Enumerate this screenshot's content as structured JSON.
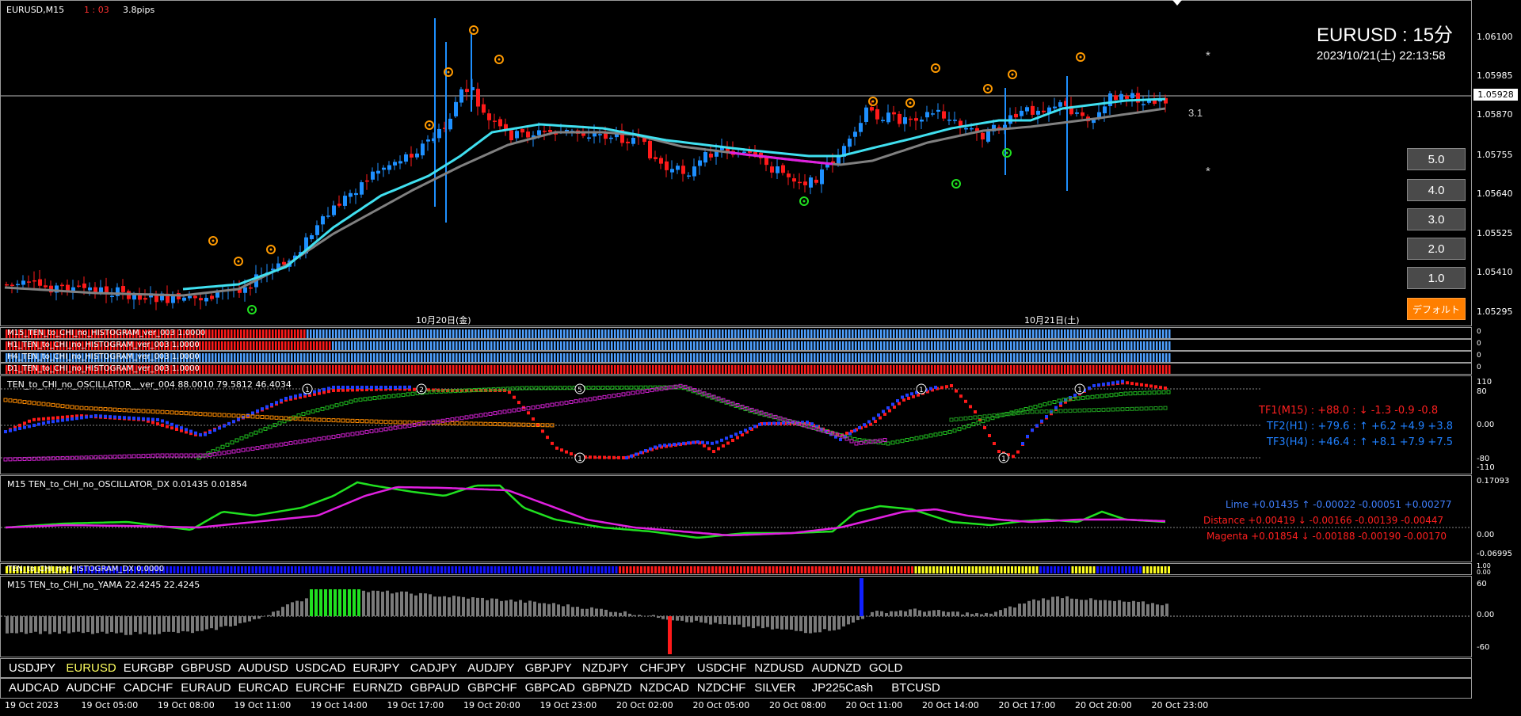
{
  "main": {
    "symbol_title": "EURUSD,M15",
    "timer": "1 : 03",
    "spread": "3.8pips",
    "big_title": "EURUSD : 15分",
    "datetime": "2023/10/21(土) 22:13:58",
    "current_price": "1.05928",
    "level_label": "3.1",
    "star": "*",
    "date_marks": [
      "10月20日(金)",
      "10月21日(土)"
    ],
    "y_labels": [
      "1.06100",
      "1.05985",
      "1.05870",
      "1.05755",
      "1.05640",
      "1.05525",
      "1.05410",
      "1.05295"
    ],
    "buttons": [
      "5.0",
      "4.0",
      "3.0",
      "2.0",
      "1.0"
    ],
    "default_button": "デフォルト"
  },
  "histograms": [
    {
      "label": "M15_TEN_to_CHI_no_HISTOGRAM_ver_003 1.0000",
      "scale": "0"
    },
    {
      "label": "H1_TEN_to_CHI_no_HISTOGRAM_ver_003 1.0000",
      "scale": "0"
    },
    {
      "label": "H4_TEN_to_CHI_no_HISTOGRAM_ver_003 1.0000",
      "scale": "0"
    },
    {
      "label": "D1_TEN_to_CHI_no_HISTOGRAM_ver_003 1.0000",
      "scale": "0"
    }
  ],
  "oscillator": {
    "label": "TEN_to_CHI_no_OSCILLATOR__ver_004 88.0010 79.5812 46.4034",
    "tf1": "TF1(M15) : +88.0 : ↓  -1.3  -0.9  -0.8",
    "tf2": "TF2(H1) : +79.6 : ↑  +6.2  +4.9  +3.8",
    "tf3": "TF3(H4) : +46.4 : ↑  +8.1  +7.9  +7.5",
    "y_labels": [
      "110",
      "80",
      "0.00",
      "-80",
      "-110"
    ],
    "markers": [
      "1",
      "2",
      "5",
      "1",
      "1",
      "1",
      "1"
    ]
  },
  "dx": {
    "label": "M15 TEN_to_CHI_no_OSCILLATOR_DX  0.01435 0.01854",
    "lime": "Lime +0.01435 ↑  -0.00022  -0.00051  +0.00277",
    "distance": "Distance +0.00419 ↓  -0.00166  -0.00139  -0.00447",
    "magenta": "Magenta +0.01854 ↓  -0.00188  -0.00190  -0.00170",
    "y_labels": [
      "0.17093",
      "0.00",
      "-0.06995"
    ]
  },
  "histdx": {
    "label": "TEN_to_CHI_no_HISTOGRAM_DX 0.0000",
    "y_labels": [
      "1.00",
      "0.00"
    ]
  },
  "yama": {
    "label": "M15  TEN_to_CHI_no_YAMA  22.4245 22.4245",
    "y_labels": [
      "60",
      "0.00",
      "-60"
    ]
  },
  "symbols_row1": [
    "USDJPY",
    "EURUSD",
    "EURGBP",
    "GBPUSD",
    "AUDUSD",
    "USDCAD",
    "EURJPY",
    "CADJPY",
    "AUDJPY",
    "GBPJPY",
    "NZDJPY",
    "CHFJPY",
    "USDCHF",
    "NZDUSD",
    "AUDNZD",
    "GOLD"
  ],
  "symbols_row2": [
    "AUDCAD",
    "AUDCHF",
    "CADCHF",
    "EURAUD",
    "EURCAD",
    "EURCHF",
    "EURNZD",
    "GBPAUD",
    "GBPCHF",
    "GBPCAD",
    "GBPNZD",
    "NZDCAD",
    "NZDCHF",
    "SILVER",
    "JP225Cash",
    "BTCUSD"
  ],
  "time_labels": [
    "19 Oct 2023",
    "19 Oct 05:00",
    "19 Oct 08:00",
    "19 Oct 11:00",
    "19 Oct 14:00",
    "19 Oct 17:00",
    "19 Oct 20:00",
    "19 Oct 23:00",
    "20 Oct 02:00",
    "20 Oct 05:00",
    "20 Oct 08:00",
    "20 Oct 11:00",
    "20 Oct 14:00",
    "20 Oct 17:00",
    "20 Oct 20:00",
    "20 Oct 23:00"
  ],
  "colors": {
    "bull": "#1e90ff",
    "bear": "#ff1a1a",
    "ma_fast": "#40e0f0",
    "ma_slow": "#808080",
    "lime": "#20e020",
    "magenta": "#e020e0",
    "selected_symbol": "#ffff60",
    "default_button_bg": "#ff7f00"
  }
}
